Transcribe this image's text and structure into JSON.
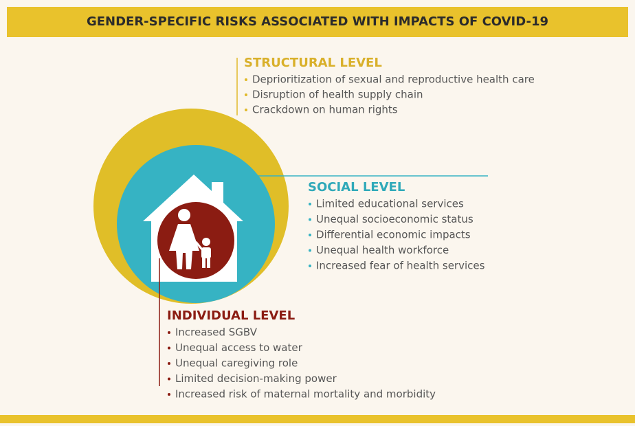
{
  "title": "GENDER-SPECIFIC RISKS ASSOCIATED WITH IMPACTS OF COVID-19",
  "levels": [
    {
      "heading": "STRUCTURAL LEVEL",
      "items": [
        "Deprioritization of sexual and reproductive health care",
        "Disruption of health supply chain",
        "Crackdown on human rights"
      ]
    },
    {
      "heading": "SOCIAL LEVEL",
      "items": [
        "Limited educational services",
        "Unequal socioeconomic status",
        "Differential economic impacts",
        "Unequal health workforce",
        "Increased fear of health services"
      ]
    },
    {
      "heading": "INDIVIDUAL LEVEL",
      "items": [
        "Increased SGBV",
        "Unequal access to water",
        "Unequal caregiving role",
        "Limited decision-making power",
        "Increased risk of maternal mortality and morbidity"
      ]
    }
  ]
}
